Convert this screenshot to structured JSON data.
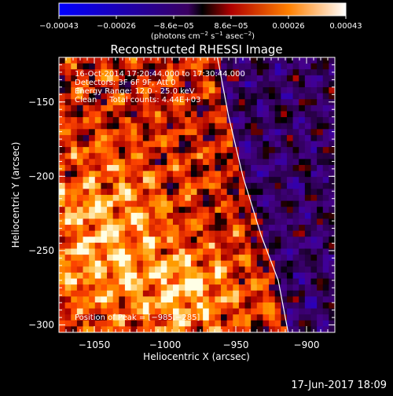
{
  "chart_data": {
    "type": "heatmap",
    "title": "Reconstructed RHESSI Image",
    "xlabel": "Heliocentric X (arcsec)",
    "ylabel": "Heliocentric Y (arcsec)",
    "xlim": [
      -1075,
      -880
    ],
    "ylim": [
      -305,
      -120
    ],
    "xticks": [
      -1050,
      -1000,
      -950,
      -900
    ],
    "xtick_labels": [
      "−1050",
      "−1000",
      "−950",
      "−900"
    ],
    "yticks": [
      -300,
      -250,
      -200,
      -150
    ],
    "ytick_labels": [
      "−300",
      "−250",
      "−200",
      "−150"
    ],
    "colorbar": {
      "tick_labels": [
        "−0.00043",
        "−0.00026",
        "−8.6e−05",
        "8.6e−05",
        "0.00026",
        "0.00043"
      ],
      "range": [
        -0.00043,
        0.00043
      ],
      "unit_label_parts": [
        "(photons cm",
        "−2",
        " s",
        "−1",
        " asec",
        "−2",
        ")"
      ]
    },
    "annotations": [
      "16-Oct-2014 17:20:44.000 to 17:30:44.000",
      "Detectors: 3F 6F 9F, Att 0",
      "Energy Range: 12.0 - 25.0 keV",
      "Clean     Total counts: 4.44E+03"
    ],
    "peak_label": "Position of Peak = [−985,−285]",
    "peak": [
      -985,
      -285
    ],
    "limb_curve": [
      [
        -963,
        -120
      ],
      [
        -955,
        -160
      ],
      [
        -945,
        -200
      ],
      [
        -932,
        -240
      ],
      [
        -920,
        -270
      ],
      [
        -913,
        -305
      ]
    ]
  },
  "footer": {
    "timestamp": "17-Jun-2017 18:09"
  }
}
